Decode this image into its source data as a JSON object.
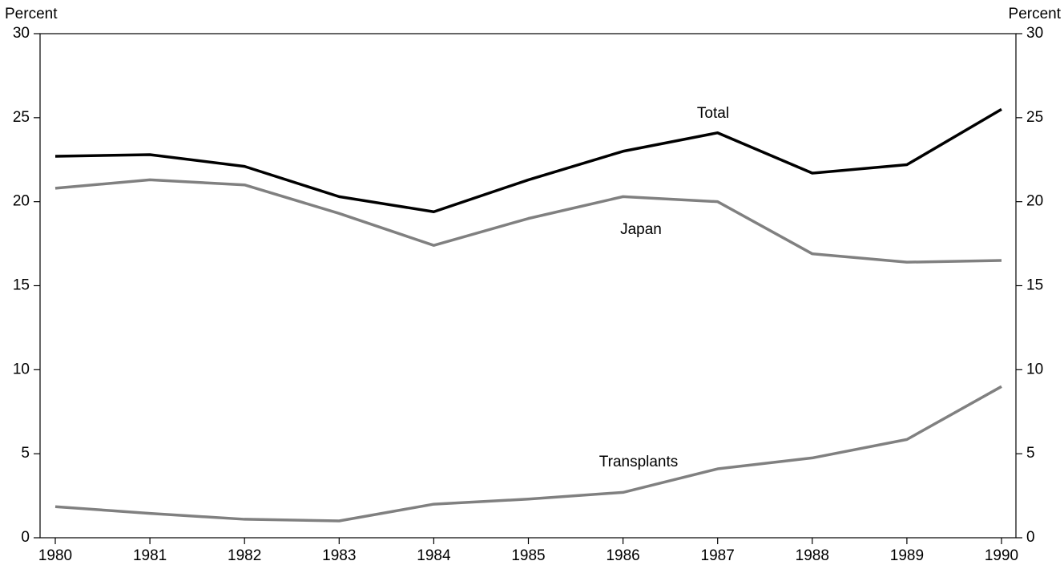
{
  "chart_data": {
    "type": "line",
    "y_label": "Percent",
    "y2_label": "Percent",
    "x": [
      1980,
      1981,
      1982,
      1983,
      1984,
      1985,
      1986,
      1987,
      1988,
      1989,
      1990
    ],
    "xlim": [
      1980,
      1990
    ],
    "xticks": [
      1980,
      1981,
      1982,
      1983,
      1984,
      1985,
      1986,
      1987,
      1988,
      1989,
      1990
    ],
    "ylim": [
      0,
      30
    ],
    "yticks": [
      0,
      5,
      10,
      15,
      20,
      25,
      30
    ],
    "y2lim": [
      0,
      30
    ],
    "y2ticks": [
      0,
      5,
      10,
      15,
      20,
      25,
      30
    ],
    "grid": false,
    "series": [
      {
        "name": "Total",
        "color": "#000000",
        "values": [
          22.7,
          22.8,
          22.1,
          20.3,
          19.4,
          21.3,
          23.0,
          24.1,
          21.7,
          22.2,
          25.5
        ]
      },
      {
        "name": "Japan",
        "color": "#808080",
        "values": [
          20.8,
          21.3,
          21.0,
          19.3,
          17.4,
          19.0,
          20.3,
          20.0,
          16.9,
          16.4,
          16.5
        ]
      },
      {
        "name": "Transplants",
        "color": "#808080",
        "values": [
          1.85,
          1.45,
          1.1,
          1.0,
          2.0,
          2.3,
          2.7,
          4.1,
          4.75,
          5.85,
          9.0
        ]
      }
    ]
  }
}
